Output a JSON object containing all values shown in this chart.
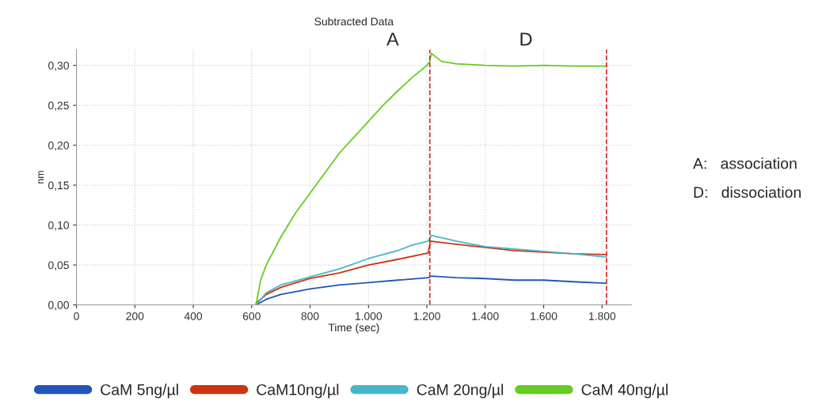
{
  "chart_data": {
    "type": "line",
    "title": "Subtracted Data",
    "xlabel": "Time (sec)",
    "ylabel": "nm",
    "xlim": [
      0,
      1900
    ],
    "ylim": [
      0,
      0.32
    ],
    "xticks": [
      0,
      200,
      400,
      600,
      800,
      {
        "value": 1000,
        "label": "1.000"
      },
      {
        "value": 1200,
        "label": "1.200"
      },
      {
        "value": 1400,
        "label": "1.400"
      },
      {
        "value": 1600,
        "label": "1.600"
      },
      {
        "value": 1800,
        "label": "1.800"
      }
    ],
    "yticks": [
      {
        "value": 0,
        "label": "0,00"
      },
      {
        "value": 0.05,
        "label": "0,05"
      },
      {
        "value": 0.1,
        "label": "0,10"
      },
      {
        "value": 0.15,
        "label": "0,15"
      },
      {
        "value": 0.2,
        "label": "0,20"
      },
      {
        "value": 0.25,
        "label": "0,25"
      },
      {
        "value": 0.3,
        "label": "0,30"
      }
    ],
    "grid": true,
    "legend": "bottom",
    "line_style": "solid",
    "marker": "none",
    "series": [
      {
        "name": "CaM 5ng/µl",
        "color": "#2255bb",
        "x": [
          615,
          650,
          700,
          800,
          900,
          1000,
          1100,
          1205,
          1215,
          1300,
          1400,
          1500,
          1600,
          1700,
          1815
        ],
        "values": [
          0,
          0.007,
          0.013,
          0.02,
          0.025,
          0.028,
          0.031,
          0.034,
          0.036,
          0.034,
          0.033,
          0.031,
          0.031,
          0.029,
          0.027
        ]
      },
      {
        "name": "CaM10ng/µl",
        "color": "#cc3311",
        "x": [
          615,
          650,
          700,
          800,
          900,
          1000,
          1100,
          1205,
          1212,
          1300,
          1400,
          1500,
          1600,
          1700,
          1815
        ],
        "values": [
          0.002,
          0.013,
          0.022,
          0.033,
          0.04,
          0.05,
          0.057,
          0.065,
          0.08,
          0.076,
          0.072,
          0.068,
          0.066,
          0.064,
          0.063
        ]
      },
      {
        "name": "CaM 20ng/µl",
        "color": "#44b8c8",
        "x": [
          615,
          650,
          700,
          800,
          900,
          1000,
          1100,
          1150,
          1205,
          1215,
          1300,
          1400,
          1500,
          1600,
          1700,
          1815
        ],
        "values": [
          0,
          0.015,
          0.025,
          0.035,
          0.045,
          0.058,
          0.068,
          0.075,
          0.08,
          0.087,
          0.08,
          0.073,
          0.07,
          0.067,
          0.064,
          0.06
        ]
      },
      {
        "name": "CaM 40ng/µl",
        "color": "#66cc22",
        "x": [
          615,
          630,
          650,
          700,
          750,
          800,
          850,
          900,
          950,
          1000,
          1050,
          1100,
          1150,
          1200,
          1210,
          1215,
          1250,
          1300,
          1400,
          1500,
          1600,
          1700,
          1815
        ],
        "values": [
          0,
          0.03,
          0.05,
          0.085,
          0.115,
          0.14,
          0.165,
          0.19,
          0.21,
          0.23,
          0.25,
          0.268,
          0.285,
          0.3,
          0.305,
          0.315,
          0.305,
          0.302,
          0.3,
          0.299,
          0.3,
          0.299,
          0.299
        ]
      }
    ],
    "ref_lines": [
      {
        "axis": "x",
        "value": 1210,
        "color": "#dd2222",
        "line_style": "dashed"
      },
      {
        "axis": "x",
        "value": 1815,
        "color": "#dd2222",
        "line_style": "dashed"
      }
    ],
    "annotations": [
      "A",
      "D",
      "A:   association",
      "D:   dissociation"
    ]
  }
}
